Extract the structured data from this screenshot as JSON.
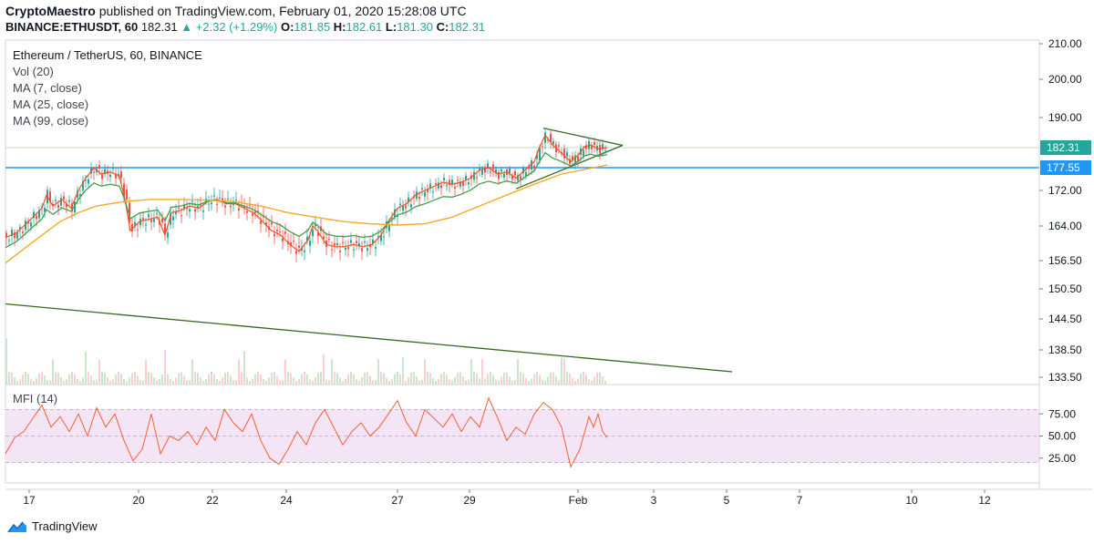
{
  "header": {
    "author": "CryptoMaestro",
    "published_text": "published on TradingView.com, February 01, 2020 15:28:08 UTC",
    "symbol": "BINANCE:ETHUSDT, 60",
    "last": "182.31",
    "change": "+2.32 (+1.29%)",
    "o_label": "O:",
    "o": "181.85",
    "h_label": "H:",
    "h": "182.61",
    "l_label": "L:",
    "l": "181.30",
    "c_label": "C:",
    "c": "182.31"
  },
  "legend": {
    "title": "Ethereum / TetherUS, 60, BINANCE",
    "vol": "Vol (20)",
    "ma7": "MA (7, close)",
    "ma25": "MA (25, close)",
    "ma99": "MA (99, close)"
  },
  "mfi_label": "MFI (14)",
  "brand": "TradingView",
  "colors": {
    "up": "#26a69a",
    "down": "#ef5350",
    "ma7": "#f4511e",
    "ma25": "#43a047",
    "ma99": "#f9a825",
    "trend": "#33691e",
    "hline": "#2196f3",
    "mfi": "#f4511e",
    "mfi_band": "#f3e5f5"
  },
  "chart_data": {
    "type": "candlestick",
    "price_axis_ticks": [
      "210.00",
      "200.00",
      "190.00",
      "182.31",
      "177.55",
      "172.00",
      "164.00",
      "156.50",
      "150.50",
      "144.50",
      "138.50",
      "133.50"
    ],
    "mfi_axis_ticks": [
      "75.00",
      "50.00",
      "25.00"
    ],
    "x_tick_labels": [
      "17",
      "20",
      "22",
      "24",
      "27",
      "29",
      "Feb",
      "3",
      "5",
      "7",
      "10",
      "12"
    ],
    "horizontal_line": 177.55,
    "last_price": 182.31,
    "ma_close_points": [
      [
        0,
        161.5
      ],
      [
        12,
        162.5
      ],
      [
        20,
        164
      ],
      [
        30,
        166
      ],
      [
        40,
        168
      ],
      [
        45,
        171
      ],
      [
        52,
        168.5
      ],
      [
        62,
        170
      ],
      [
        72,
        168
      ],
      [
        80,
        172
      ],
      [
        88,
        175
      ],
      [
        97,
        177.5
      ],
      [
        105,
        176
      ],
      [
        115,
        176.5
      ],
      [
        125,
        175.5
      ],
      [
        131,
        170
      ],
      [
        137,
        163
      ],
      [
        147,
        165
      ],
      [
        157,
        165.5
      ],
      [
        167,
        166
      ],
      [
        175,
        162
      ],
      [
        182,
        167
      ],
      [
        192,
        167.5
      ],
      [
        202,
        168.5
      ],
      [
        212,
        168
      ],
      [
        222,
        169.5
      ],
      [
        232,
        170
      ],
      [
        242,
        169
      ],
      [
        252,
        169
      ],
      [
        262,
        168
      ],
      [
        272,
        167
      ],
      [
        282,
        165
      ],
      [
        292,
        163
      ],
      [
        302,
        162
      ],
      [
        312,
        160
      ],
      [
        322,
        158.5
      ],
      [
        332,
        161
      ],
      [
        337,
        164
      ],
      [
        342,
        163
      ],
      [
        352,
        160
      ],
      [
        362,
        159.5
      ],
      [
        372,
        159.5
      ],
      [
        382,
        160
      ],
      [
        392,
        159.5
      ],
      [
        402,
        160
      ],
      [
        412,
        162
      ],
      [
        420,
        165
      ],
      [
        430,
        168
      ],
      [
        440,
        169
      ],
      [
        450,
        171
      ],
      [
        460,
        172
      ],
      [
        470,
        173
      ],
      [
        480,
        174
      ],
      [
        490,
        173.5
      ],
      [
        500,
        174
      ],
      [
        510,
        175
      ],
      [
        520,
        177
      ],
      [
        530,
        177.5
      ],
      [
        540,
        176
      ],
      [
        550,
        176.5
      ],
      [
        560,
        175
      ],
      [
        570,
        177
      ],
      [
        580,
        179
      ],
      [
        585,
        182
      ],
      [
        592,
        185.5
      ],
      [
        600,
        183
      ],
      [
        610,
        181
      ],
      [
        620,
        179
      ],
      [
        628,
        180.5
      ],
      [
        635,
        182.5
      ],
      [
        642,
        183
      ],
      [
        650,
        182
      ],
      [
        660,
        182.3
      ]
    ],
    "ma99_points": [
      [
        0,
        156
      ],
      [
        20,
        159
      ],
      [
        40,
        162
      ],
      [
        60,
        165
      ],
      [
        80,
        167
      ],
      [
        100,
        168.5
      ],
      [
        130,
        169.5
      ],
      [
        160,
        170
      ],
      [
        190,
        170
      ],
      [
        220,
        169.8
      ],
      [
        250,
        169.5
      ],
      [
        280,
        168.5
      ],
      [
        310,
        167
      ],
      [
        340,
        166
      ],
      [
        370,
        165
      ],
      [
        400,
        164.5
      ],
      [
        430,
        164.2
      ],
      [
        460,
        164.5
      ],
      [
        490,
        166
      ],
      [
        520,
        168.5
      ],
      [
        550,
        171
      ],
      [
        580,
        173.5
      ],
      [
        610,
        176
      ],
      [
        640,
        177.3
      ],
      [
        660,
        178.2
      ]
    ],
    "trendlines": [
      {
        "from": [
          0,
          147.5
        ],
        "to": [
          797,
          134.5
        ]
      },
      {
        "from": [
          590,
          187.3
        ],
        "to": [
          677,
          182.9
        ]
      },
      {
        "from": [
          560,
          172.4
        ],
        "to": [
          677,
          182.9
        ]
      }
    ],
    "mfi_points": [
      [
        0,
        30
      ],
      [
        10,
        48
      ],
      [
        20,
        55
      ],
      [
        30,
        70
      ],
      [
        40,
        85
      ],
      [
        50,
        60
      ],
      [
        60,
        72
      ],
      [
        70,
        55
      ],
      [
        80,
        75
      ],
      [
        90,
        50
      ],
      [
        100,
        82
      ],
      [
        110,
        60
      ],
      [
        120,
        75
      ],
      [
        130,
        45
      ],
      [
        140,
        22
      ],
      [
        150,
        35
      ],
      [
        160,
        75
      ],
      [
        170,
        30
      ],
      [
        180,
        50
      ],
      [
        190,
        45
      ],
      [
        200,
        55
      ],
      [
        210,
        40
      ],
      [
        220,
        60
      ],
      [
        230,
        45
      ],
      [
        240,
        80
      ],
      [
        250,
        65
      ],
      [
        260,
        55
      ],
      [
        270,
        75
      ],
      [
        280,
        45
      ],
      [
        290,
        25
      ],
      [
        300,
        18
      ],
      [
        310,
        35
      ],
      [
        320,
        55
      ],
      [
        330,
        40
      ],
      [
        340,
        65
      ],
      [
        350,
        80
      ],
      [
        360,
        60
      ],
      [
        370,
        40
      ],
      [
        380,
        55
      ],
      [
        390,
        65
      ],
      [
        400,
        50
      ],
      [
        410,
        60
      ],
      [
        420,
        75
      ],
      [
        430,
        90
      ],
      [
        440,
        65
      ],
      [
        450,
        50
      ],
      [
        460,
        80
      ],
      [
        470,
        70
      ],
      [
        480,
        60
      ],
      [
        490,
        75
      ],
      [
        500,
        55
      ],
      [
        510,
        72
      ],
      [
        520,
        60
      ],
      [
        530,
        93
      ],
      [
        540,
        70
      ],
      [
        550,
        45
      ],
      [
        560,
        60
      ],
      [
        570,
        52
      ],
      [
        580,
        75
      ],
      [
        590,
        88
      ],
      [
        600,
        80
      ],
      [
        610,
        60
      ],
      [
        620,
        15
      ],
      [
        630,
        35
      ],
      [
        640,
        72
      ],
      [
        645,
        60
      ],
      [
        650,
        75
      ],
      [
        655,
        55
      ],
      [
        660,
        48
      ]
    ]
  }
}
